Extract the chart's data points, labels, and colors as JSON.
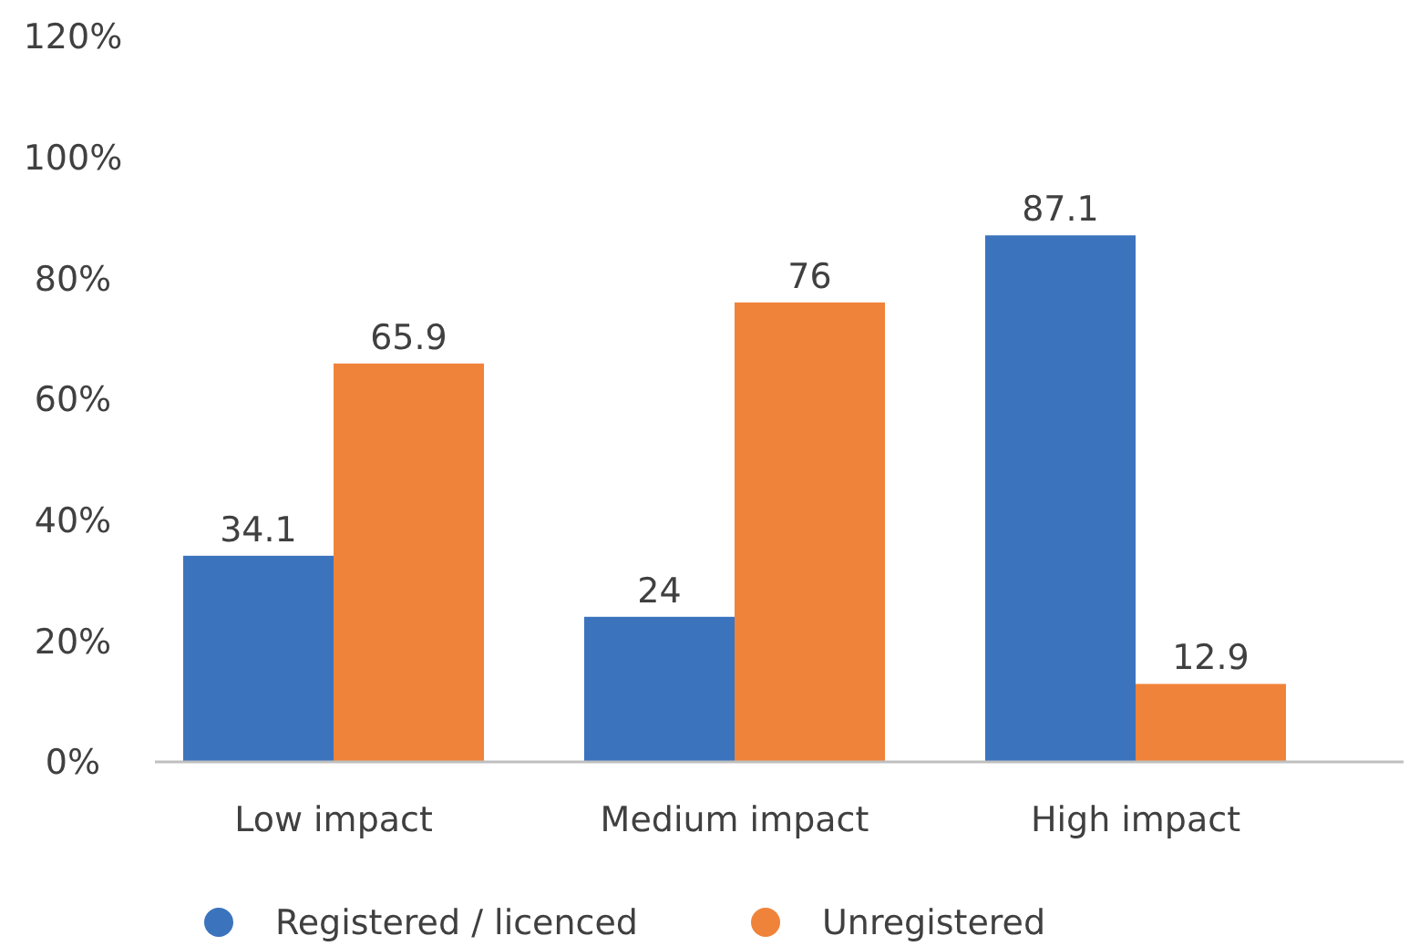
{
  "chart_data": {
    "type": "bar",
    "categories": [
      "Low impact",
      "Medium impact",
      "High impact"
    ],
    "series": [
      {
        "name": "Registered / licenced",
        "color": "#3b73bd",
        "values": [
          34.1,
          24,
          87.1
        ]
      },
      {
        "name": "Unregistered",
        "color": "#f0833a",
        "values": [
          65.9,
          76,
          12.9
        ]
      }
    ],
    "data_labels": true,
    "ylim": [
      0,
      120
    ],
    "yticks": [
      {
        "value": 0,
        "label": "0%"
      },
      {
        "value": 20,
        "label": "20%"
      },
      {
        "value": 40,
        "label": "40%"
      },
      {
        "value": 60,
        "label": "60%"
      },
      {
        "value": 80,
        "label": "80%"
      },
      {
        "value": 100,
        "label": "100%"
      },
      {
        "value": 120,
        "label": "120%"
      }
    ],
    "grid": false,
    "legend": "bottom"
  }
}
